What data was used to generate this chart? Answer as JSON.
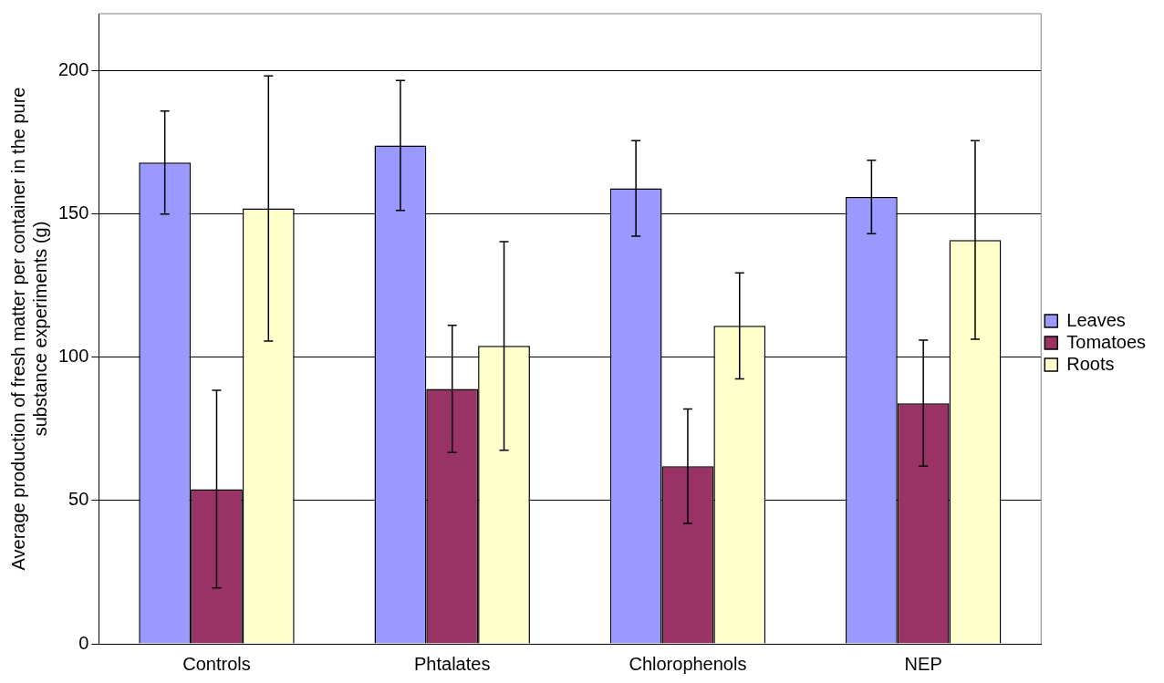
{
  "chart_data": {
    "type": "bar",
    "ylabel": "Average production of fresh matter per container in the pure substance experiments (g)",
    "categories": [
      "Controls",
      "Phtalates",
      "Chlorophenols",
      "NEP"
    ],
    "series": [
      {
        "name": "Leaves",
        "color": "#9999ff",
        "values": [
          168,
          174,
          159,
          156
        ],
        "errors": [
          18,
          22.7,
          16.7,
          12.8
        ]
      },
      {
        "name": "Tomatoes",
        "color": "#993366",
        "values": [
          54,
          89,
          62,
          84
        ],
        "errors": [
          34.5,
          22.2,
          20,
          22
        ]
      },
      {
        "name": "Roots",
        "color": "#ffffcc",
        "values": [
          152,
          104,
          111,
          141
        ],
        "errors": [
          46.3,
          36.4,
          18.5,
          34.7
        ]
      }
    ],
    "ylim": [
      0,
      220
    ],
    "yticks": [
      0,
      50,
      100,
      150,
      200
    ],
    "grid": "y",
    "legend": "right"
  }
}
